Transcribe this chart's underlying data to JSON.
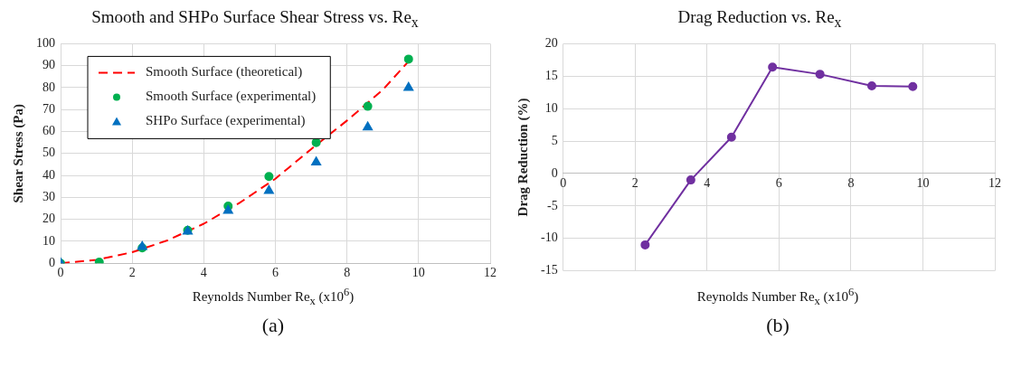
{
  "chart_data": [
    {
      "type": "scatter",
      "title": "Smooth and SHPo Surface Shear Stress vs. Re$_{x}$",
      "xlabel": "Reynolds Number Re$_{x}$ (x10$^{6}$)",
      "ylabel": "Shear Stress (Pa)",
      "xlim": [
        0,
        12
      ],
      "xticks": [
        0,
        2,
        4,
        6,
        8,
        10,
        12
      ],
      "ylim": [
        0,
        100
      ],
      "yticks": [
        0,
        10,
        20,
        30,
        40,
        50,
        60,
        70,
        80,
        90,
        100
      ],
      "grid": true,
      "legend": "top left",
      "annotations": [
        "(a)"
      ],
      "series": [
        {
          "name": "Smooth Surface (theoretical)",
          "type": "line",
          "line_style": "dashed",
          "marker": "none",
          "color": "#ff0000",
          "x": [
            0,
            1,
            2,
            3,
            4,
            5,
            6,
            7,
            8,
            9,
            9.72
          ],
          "values": [
            0,
            1.5,
            5,
            10.5,
            18,
            27.5,
            38.5,
            52,
            65,
            79,
            92
          ]
        },
        {
          "name": "Smooth Surface (experimental)",
          "type": "scatter",
          "marker": "circle",
          "color": "#00b050",
          "x": [
            0,
            1.08,
            2.28,
            3.55,
            4.68,
            5.82,
            7.14,
            8.58,
            9.72
          ],
          "values": [
            0,
            0.5,
            7,
            15,
            26,
            39.5,
            55,
            71.5,
            93
          ]
        },
        {
          "name": "SHPo Surface (experimental)",
          "type": "scatter",
          "marker": "triangle",
          "color": "#0070c0",
          "x": [
            0,
            2.28,
            3.55,
            4.68,
            5.82,
            7.14,
            8.58,
            9.72
          ],
          "values": [
            0,
            7.5,
            14.5,
            24,
            33,
            46,
            62,
            80
          ]
        }
      ]
    },
    {
      "type": "line",
      "title": "Drag Reduction vs. Re$_{x}$",
      "xlabel": "Reynolds Number Re$_{x}$ (x10$^{6}$)",
      "ylabel": "Drag Reduction (%)",
      "xlim": [
        0,
        12
      ],
      "xticks": [
        0,
        2,
        4,
        6,
        8,
        10,
        12
      ],
      "ylim": [
        -15,
        20
      ],
      "yticks": [
        -15,
        -10,
        -5,
        0,
        5,
        10,
        15,
        20
      ],
      "grid": true,
      "marker": "circle",
      "annotations": [
        "(b)"
      ],
      "series": [
        {
          "color": "#7030a0",
          "x": [
            2.28,
            3.55,
            4.68,
            5.82,
            7.14,
            8.58,
            9.72
          ],
          "values": [
            -11,
            -1,
            5.6,
            16.4,
            15.3,
            13.5,
            13.4
          ]
        }
      ]
    }
  ]
}
